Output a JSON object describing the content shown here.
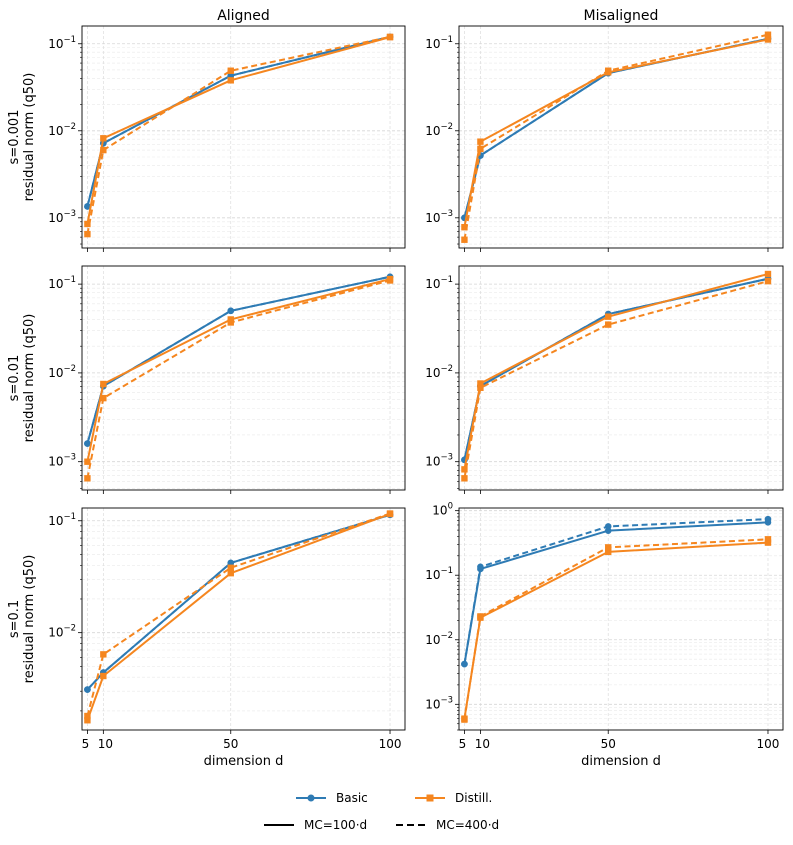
{
  "chart_data": {
    "type": "line",
    "x_values": [
      5,
      10,
      50,
      100
    ],
    "xlabel": "dimension d",
    "x_ticks": [
      "5",
      "10",
      "50",
      "100"
    ],
    "columns": [
      "Aligned",
      "Misaligned"
    ],
    "rows": [
      {
        "label": "s=0.001",
        "ylabel": "residual norm (q50)"
      },
      {
        "label": "s=0.01",
        "ylabel": "residual norm (q50)"
      },
      {
        "label": "s=0.1",
        "ylabel": "residual norm (q50)"
      }
    ],
    "colors": {
      "Basic": "#2e7bb4",
      "Distill.": "#f5861f"
    },
    "legend": {
      "methods": [
        "Basic",
        "Distill."
      ],
      "mc": [
        {
          "label": "MC=100·d",
          "style": "solid"
        },
        {
          "label": "MC=400·d",
          "style": "dashed"
        }
      ]
    },
    "panels": [
      {
        "row": 0,
        "col": 0,
        "yscale": "log",
        "ylim": [
          0.00045,
          0.16
        ],
        "y_ticks": [
          {
            "v": 0.001,
            "base": "10",
            "exp": "−3"
          },
          {
            "v": 0.01,
            "base": "10",
            "exp": "−2"
          },
          {
            "v": 0.1,
            "base": "10",
            "exp": "−1"
          }
        ],
        "series": [
          {
            "method": "Basic",
            "mc": "MC=100·d",
            "values": [
              0.00135,
              0.0072,
              0.043,
              0.12
            ]
          },
          {
            "method": "Basic",
            "mc": "MC=400·d",
            "values": [
              0.00135,
              0.0072,
              0.043,
              0.12
            ]
          },
          {
            "method": "Distill.",
            "mc": "MC=100·d",
            "values": [
              0.00085,
              0.0082,
              0.038,
              0.119
            ]
          },
          {
            "method": "Distill.",
            "mc": "MC=400·d",
            "values": [
              0.00065,
              0.006,
              0.049,
              0.12
            ]
          }
        ]
      },
      {
        "row": 0,
        "col": 1,
        "yscale": "log",
        "ylim": [
          0.00045,
          0.16
        ],
        "y_ticks": [
          {
            "v": 0.001,
            "base": "10",
            "exp": "−3"
          },
          {
            "v": 0.01,
            "base": "10",
            "exp": "−2"
          },
          {
            "v": 0.1,
            "base": "10",
            "exp": "−1"
          }
        ],
        "series": [
          {
            "method": "Basic",
            "mc": "MC=100·d",
            "values": [
              0.001,
              0.0052,
              0.046,
              0.114
            ]
          },
          {
            "method": "Basic",
            "mc": "MC=400·d",
            "values": [
              0.001,
              0.0052,
              0.046,
              0.114
            ]
          },
          {
            "method": "Distill.",
            "mc": "MC=100·d",
            "values": [
              0.00078,
              0.0075,
              0.047,
              0.112
            ]
          },
          {
            "method": "Distill.",
            "mc": "MC=400·d",
            "values": [
              0.00056,
              0.0062,
              0.049,
              0.127
            ]
          }
        ]
      },
      {
        "row": 1,
        "col": 0,
        "yscale": "log",
        "ylim": [
          0.00048,
          0.16
        ],
        "y_ticks": [
          {
            "v": 0.001,
            "base": "10",
            "exp": "−3"
          },
          {
            "v": 0.01,
            "base": "10",
            "exp": "−2"
          },
          {
            "v": 0.1,
            "base": "10",
            "exp": "−1"
          }
        ],
        "series": [
          {
            "method": "Basic",
            "mc": "MC=100·d",
            "values": [
              0.0016,
              0.0071,
              0.05,
              0.121
            ]
          },
          {
            "method": "Basic",
            "mc": "MC=400·d",
            "values": [
              0.0016,
              0.0071,
              0.05,
              0.121
            ]
          },
          {
            "method": "Distill.",
            "mc": "MC=100·d",
            "values": [
              0.001,
              0.0075,
              0.04,
              0.114
            ]
          },
          {
            "method": "Distill.",
            "mc": "MC=400·d",
            "values": [
              0.00065,
              0.0052,
              0.037,
              0.11
            ]
          }
        ]
      },
      {
        "row": 1,
        "col": 1,
        "yscale": "log",
        "ylim": [
          0.00048,
          0.16
        ],
        "y_ticks": [
          {
            "v": 0.001,
            "base": "10",
            "exp": "−3"
          },
          {
            "v": 0.01,
            "base": "10",
            "exp": "−2"
          },
          {
            "v": 0.1,
            "base": "10",
            "exp": "−1"
          }
        ],
        "series": [
          {
            "method": "Basic",
            "mc": "MC=100·d",
            "values": [
              0.00105,
              0.0071,
              0.046,
              0.115
            ]
          },
          {
            "method": "Basic",
            "mc": "MC=400·d",
            "values": [
              0.00105,
              0.0071,
              0.046,
              0.115
            ]
          },
          {
            "method": "Distill.",
            "mc": "MC=100·d",
            "values": [
              0.00082,
              0.0076,
              0.043,
              0.13
            ]
          },
          {
            "method": "Distill.",
            "mc": "MC=400·d",
            "values": [
              0.00065,
              0.0068,
              0.035,
              0.108
            ]
          }
        ]
      },
      {
        "row": 2,
        "col": 0,
        "yscale": "log",
        "ylim": [
          0.00135,
          0.13
        ],
        "y_ticks": [
          {
            "v": 0.01,
            "base": "10",
            "exp": "−2"
          },
          {
            "v": 0.1,
            "base": "10",
            "exp": "−1"
          }
        ],
        "series": [
          {
            "method": "Basic",
            "mc": "MC=100·d",
            "values": [
              0.0031,
              0.0044,
              0.042,
              0.113
            ]
          },
          {
            "method": "Basic",
            "mc": "MC=400·d",
            "values": [
              0.0031,
              0.0044,
              0.042,
              0.113
            ]
          },
          {
            "method": "Distill.",
            "mc": "MC=100·d",
            "values": [
              0.00165,
              0.0041,
              0.034,
              0.115
            ]
          },
          {
            "method": "Distill.",
            "mc": "MC=400·d",
            "values": [
              0.0018,
              0.0064,
              0.038,
              0.116
            ]
          }
        ]
      },
      {
        "row": 2,
        "col": 1,
        "yscale": "log",
        "ylim": [
          0.0004,
          1.1
        ],
        "y_ticks": [
          {
            "v": 0.001,
            "base": "10",
            "exp": "−3"
          },
          {
            "v": 0.01,
            "base": "10",
            "exp": "−2"
          },
          {
            "v": 0.1,
            "base": "10",
            "exp": "−1"
          },
          {
            "v": 1,
            "base": "10",
            "exp": "0"
          }
        ],
        "series": [
          {
            "method": "Basic",
            "mc": "MC=100·d",
            "values": [
              0.0042,
              0.125,
              0.49,
              0.66
            ]
          },
          {
            "method": "Basic",
            "mc": "MC=400·d",
            "values": [
              0.0042,
              0.135,
              0.57,
              0.74
            ]
          },
          {
            "method": "Distill.",
            "mc": "MC=100·d",
            "values": [
              0.0006,
              0.022,
              0.23,
              0.32
            ]
          },
          {
            "method": "Distill.",
            "mc": "MC=400·d",
            "values": [
              0.00058,
              0.023,
              0.27,
              0.36
            ]
          }
        ]
      }
    ]
  }
}
